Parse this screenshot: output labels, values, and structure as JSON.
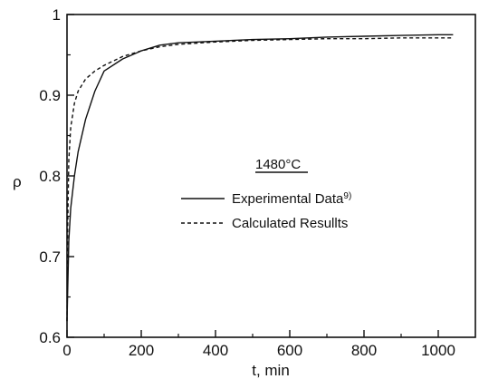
{
  "chart_data": {
    "type": "line",
    "xlabel": "t, min",
    "ylabel": "ρ",
    "xlim": [
      0,
      1100
    ],
    "ylim": [
      0.6,
      1.0
    ],
    "x_ticks": [
      0,
      200,
      400,
      600,
      800,
      1000
    ],
    "y_ticks": [
      0.6,
      0.7,
      0.8,
      0.9,
      1.0
    ],
    "x_tick_labels": [
      "0",
      "200",
      "400",
      "600",
      "800",
      "1000"
    ],
    "y_tick_labels": [
      "0.6",
      "0.7",
      "0.8",
      "0.9",
      "1"
    ],
    "grid": false,
    "legend_position": "center-right",
    "annotation": "1480°C",
    "series": [
      {
        "name": "Experimental Data",
        "name_superscript": "9)",
        "style": "solid",
        "x": [
          0,
          5,
          10,
          20,
          30,
          50,
          75,
          100,
          150,
          200,
          250,
          300,
          400,
          500,
          600,
          700,
          800,
          900,
          1000,
          1040
        ],
        "y": [
          0.62,
          0.72,
          0.76,
          0.8,
          0.83,
          0.87,
          0.905,
          0.93,
          0.945,
          0.955,
          0.962,
          0.965,
          0.967,
          0.969,
          0.97,
          0.972,
          0.973,
          0.974,
          0.975,
          0.975
        ]
      },
      {
        "name": "Calculated Resullts",
        "style": "dashed",
        "x": [
          0,
          2,
          5,
          10,
          20,
          30,
          50,
          75,
          100,
          150,
          200,
          250,
          300,
          400,
          500,
          600,
          700,
          800,
          900,
          1000,
          1040
        ],
        "y": [
          0.62,
          0.74,
          0.82,
          0.86,
          0.89,
          0.905,
          0.92,
          0.93,
          0.937,
          0.948,
          0.955,
          0.96,
          0.963,
          0.966,
          0.968,
          0.969,
          0.97,
          0.97,
          0.971,
          0.971,
          0.971
        ]
      }
    ]
  }
}
